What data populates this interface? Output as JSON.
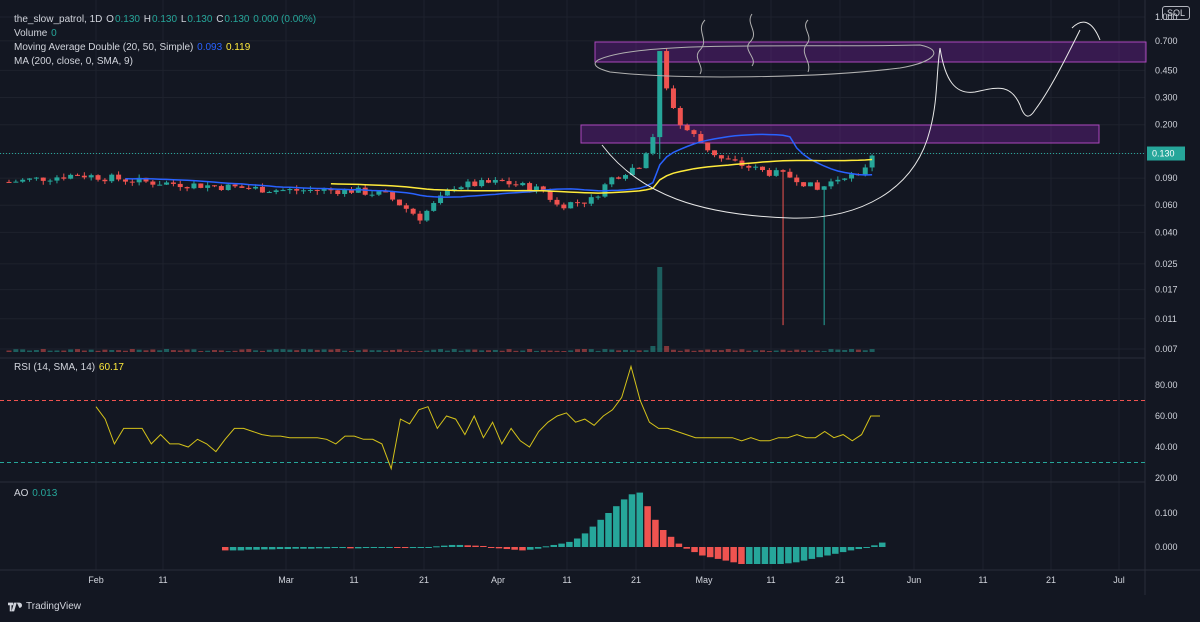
{
  "header": {
    "symbol": "the_slow_patrol, 1D",
    "o_label": "O",
    "o": "0.130",
    "h_label": "H",
    "h": "0.130",
    "l_label": "L",
    "l": "0.130",
    "c_label": "C",
    "c": "0.130",
    "change": "0.000 (0.00%)",
    "volume_label": "Volume",
    "volume": "0",
    "ma_double_label": "Moving Average Double (20, 50, Simple)",
    "ma20_value": "0.093",
    "ma50_value": "0.119",
    "ma200_label": "MA (200, close, 0, SMA, 9)"
  },
  "currency_badge": "SOL",
  "branding": "TradingView",
  "colors": {
    "background": "#131722",
    "up": "#26a69a",
    "down": "#ef5350",
    "ma20": "#2962ff",
    "ma50": "#ffeb3b",
    "rsi": "#d4c21a",
    "zone": "#7b1fa2",
    "drawing": "#e8e8e8"
  },
  "chart_data": [
    {
      "type": "candlestick",
      "name": "price",
      "y_scale": "log",
      "y_ticks": [
        "1.000",
        "0.700",
        "0.450",
        "0.300",
        "0.200",
        "0.130",
        "0.090",
        "0.060",
        "0.040",
        "0.025",
        "0.017",
        "0.011",
        "0.007"
      ],
      "last_price_label": "0.130",
      "x_ticks": [
        "Feb",
        "11",
        "Mar",
        "11",
        "21",
        "Apr",
        "11",
        "21",
        "May",
        "11",
        "21",
        "Jun",
        "11",
        "21",
        "Jul"
      ],
      "ma20_value": 0.093,
      "ma50_value": 0.119,
      "resistance_zones": [
        [
          0.48,
          0.68
        ],
        [
          0.155,
          0.19
        ]
      ],
      "volume_spike": "mid-April",
      "annotations": "hand-drawn cup-and-handle arc with projected upward move"
    },
    {
      "type": "line",
      "name": "RSI",
      "label": "RSI (14, SMA, 14)",
      "current": "60.17",
      "y_ticks": [
        "80.00",
        "60.00",
        "40.00",
        "20.00"
      ],
      "overbought": 70,
      "oversold": 30,
      "values": [
        66,
        58,
        42,
        52,
        52,
        52,
        42,
        48,
        42,
        42,
        40,
        45,
        42,
        37,
        45,
        52,
        52,
        50,
        48,
        47,
        47,
        46,
        46,
        46,
        46,
        45,
        42,
        47,
        47,
        45,
        45,
        42,
        26,
        58,
        55,
        64,
        66,
        52,
        60,
        58,
        48,
        60,
        46,
        56,
        42,
        52,
        44,
        40,
        50,
        56,
        60,
        62,
        56,
        58,
        54,
        60,
        64,
        72,
        92,
        70,
        56,
        52,
        52,
        50,
        48,
        46,
        46,
        46,
        46,
        46,
        44,
        46,
        44,
        44,
        46,
        46,
        48,
        46,
        46,
        50,
        46,
        48,
        44,
        48,
        60,
        60
      ]
    },
    {
      "type": "bar",
      "name": "AO",
      "label": "AO",
      "current": "0.013",
      "y_ticks": [
        "0.100",
        "0.000"
      ],
      "values": [
        -0.01,
        -0.01,
        -0.01,
        -0.008,
        -0.008,
        -0.007,
        -0.007,
        -0.006,
        -0.006,
        -0.005,
        -0.005,
        -0.005,
        -0.004,
        -0.004,
        -0.003,
        -0.003,
        -0.004,
        -0.004,
        -0.003,
        -0.002,
        -0.002,
        -0.001,
        -0.002,
        -0.003,
        -0.003,
        -0.002,
        -0.001,
        0.002,
        0.004,
        0.006,
        0.006,
        0.005,
        0.004,
        0.003,
        -0.002,
        -0.004,
        -0.006,
        -0.008,
        -0.01,
        -0.008,
        -0.005,
        0.002,
        0.006,
        0.01,
        0.015,
        0.025,
        0.04,
        0.06,
        0.08,
        0.1,
        0.12,
        0.14,
        0.155,
        0.16,
        0.12,
        0.08,
        0.05,
        0.03,
        0.01,
        -0.005,
        -0.015,
        -0.025,
        -0.03,
        -0.035,
        -0.04,
        -0.045,
        -0.05,
        -0.05,
        -0.05,
        -0.05,
        -0.05,
        -0.05,
        -0.048,
        -0.045,
        -0.04,
        -0.035,
        -0.03,
        -0.025,
        -0.02,
        -0.015,
        -0.01,
        -0.006,
        -0.003,
        0.005,
        0.013
      ]
    }
  ]
}
